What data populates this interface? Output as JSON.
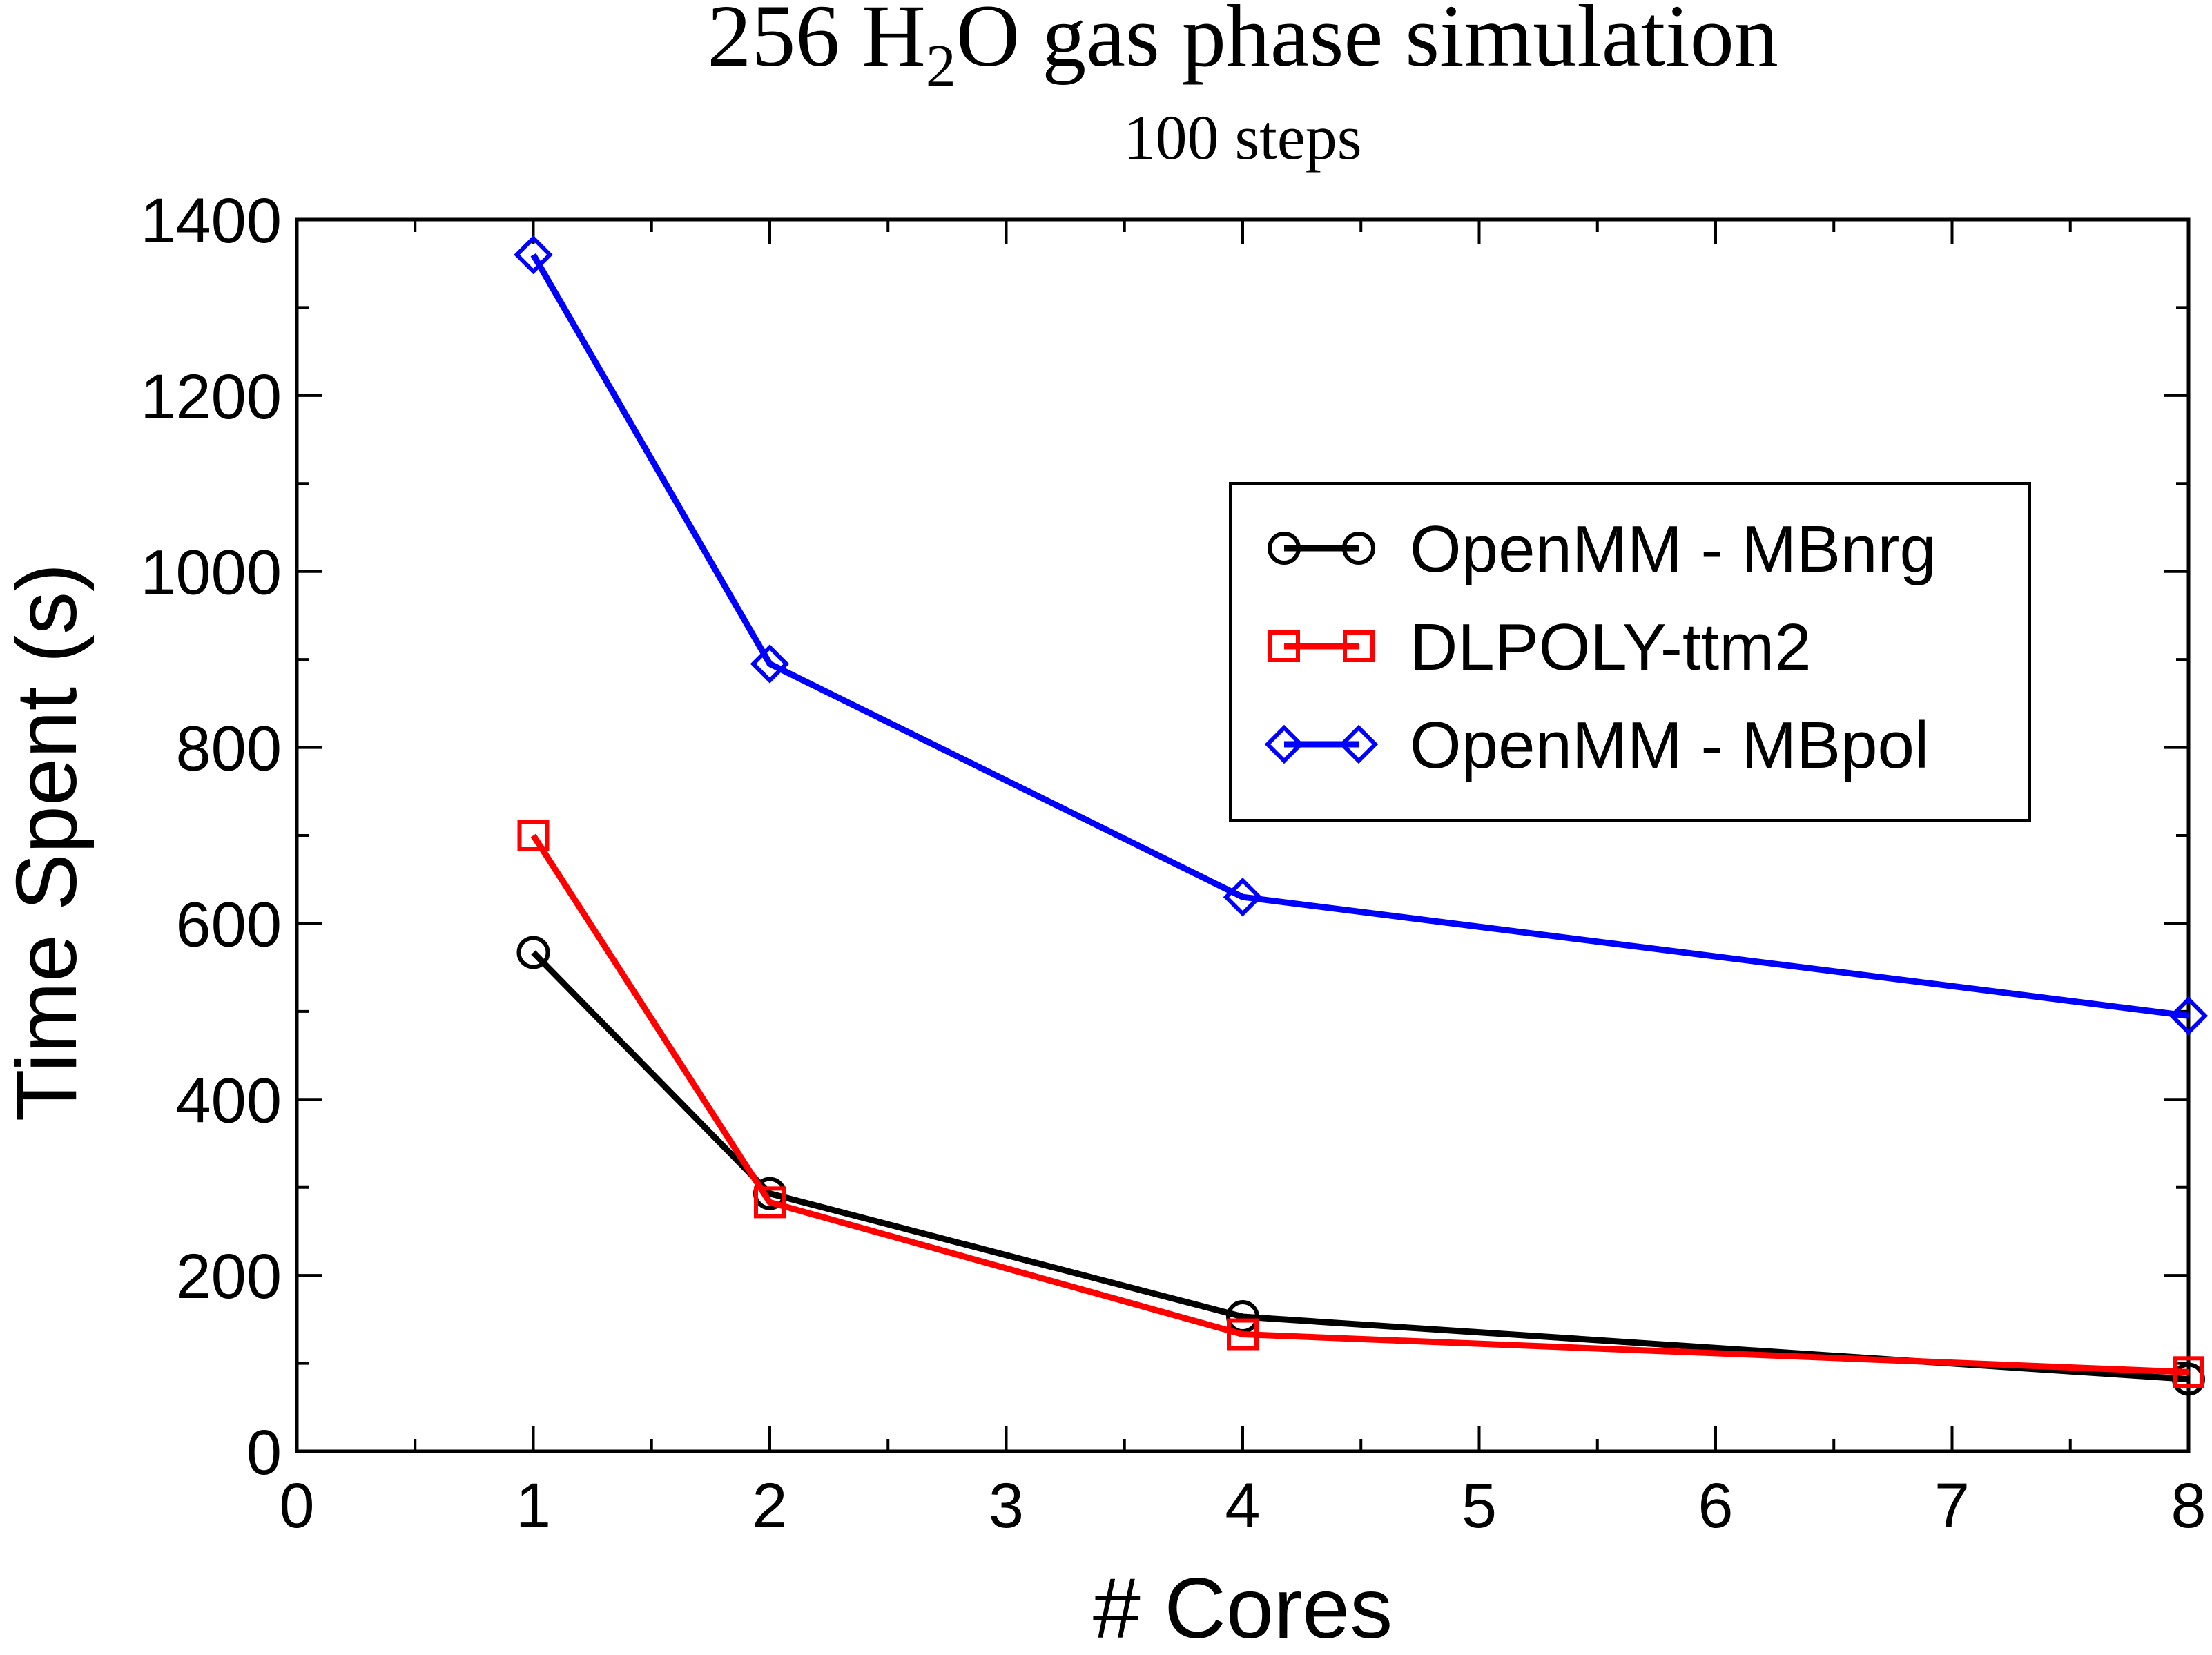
{
  "chart_data": {
    "type": "line",
    "title": {
      "prefix": "256 H",
      "subscript": "2",
      "suffix": "O gas phase simulation"
    },
    "subtitle": "100 steps",
    "xlabel": "# Cores",
    "ylabel": "Time Spent (s)",
    "xlim": [
      0,
      8
    ],
    "ylim": [
      0,
      1400
    ],
    "x_ticks": [
      "0",
      "1",
      "2",
      "3",
      "4",
      "5",
      "6",
      "7",
      "8"
    ],
    "y_ticks": [
      "0",
      "200",
      "400",
      "600",
      "800",
      "1000",
      "1200",
      "1400"
    ],
    "grid": false,
    "legend_position": "upper-right",
    "series": [
      {
        "name": "OpenMM - MBnrg",
        "color": "#000000",
        "marker": "circle",
        "x": [
          1,
          2,
          4,
          8
        ],
        "y": [
          567,
          293,
          153,
          82
        ]
      },
      {
        "name": "DLPOLY-ttm2",
        "color": "#ff0000",
        "marker": "square",
        "x": [
          1,
          2,
          4,
          8
        ],
        "y": [
          700,
          283,
          133,
          90
        ]
      },
      {
        "name": "OpenMM - MBpol",
        "color": "#0000ff",
        "marker": "diamond",
        "x": [
          1,
          2,
          4,
          8
        ],
        "y": [
          1360,
          895,
          630,
          495
        ]
      }
    ]
  }
}
